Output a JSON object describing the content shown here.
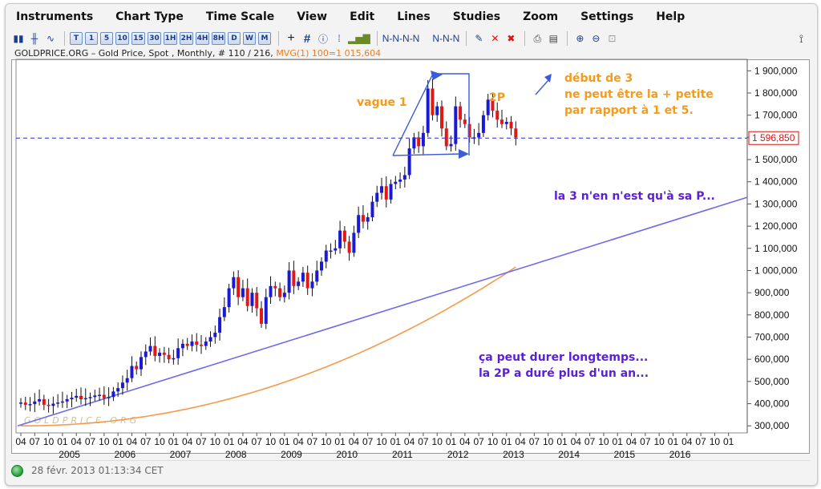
{
  "menu": [
    "Instruments",
    "Chart Type",
    "Time Scale",
    "View",
    "Edit",
    "Lines",
    "Studies",
    "Zoom",
    "Settings",
    "Help"
  ],
  "toolbar": {
    "timeframes": [
      "T",
      "1",
      "5",
      "10",
      "15",
      "30",
      "1H",
      "2H",
      "4H",
      "8H",
      "D",
      "W",
      "M"
    ],
    "icons": [
      "candlestick-icon",
      "ohlc-icon",
      "line-chart-icon",
      "crosshair-icon",
      "grid-icon",
      "info-icon",
      "volume-grid-icon",
      "bar-volume-icon",
      "wave-draw-icon",
      "delete-icon",
      "delete-all-icon",
      "print-icon",
      "print-preview-icon",
      "zoom-in-icon",
      "zoom-out-icon",
      "zoom-reset-icon",
      "pin-icon"
    ]
  },
  "chart_header": {
    "title": "GOLDPRICE.ORG – Gold Price, Spot , Monthly, # 110 / 216,",
    "indicator": "MVG(1) 100=1 015,604"
  },
  "watermark": "GOLDPRICE.ORG",
  "status": {
    "timestamp": "28 févr. 2013 01:13:34 CET"
  },
  "annotations": {
    "vague1": "vague 1",
    "twoP": "2P",
    "debut3": "début de 3\nne peut être la + petite\npar rapport à 1 et 5.",
    "la3": "la 3 n'en n'est qu'à sa P...",
    "durer": "ça peut durer longtemps...\nla 2P a duré plus d'un an..."
  },
  "colors": {
    "up_candle": "#1a1ad6",
    "down_candle": "#e01818",
    "trendline": "#6b6bef",
    "moving_average": "#f59a4a",
    "price_line": "#2626d9",
    "annotation_orange": "#f59a1a",
    "annotation_purple": "#5b1fd6",
    "status_green": "#1f9a3a"
  },
  "chart_data": {
    "type": "candlestick",
    "title": "GOLDPRICE.ORG – Gold Price, Spot , Monthly, # 110 / 216,",
    "current_price_label": "1 596,850",
    "current_price": 1596.85,
    "ylim": [
      290000,
      1930000
    ],
    "y_ticks": [
      "300,000",
      "400,000",
      "500,000",
      "600,000",
      "700,000",
      "800,000",
      "900,000",
      "1 000,000",
      "1 100,000",
      "1 200,000",
      "1 300,000",
      "1 400,000",
      "1 500,000",
      "1 600,000",
      "1 700,000",
      "1 800,000",
      "1 900,000"
    ],
    "y_tick_values": [
      300000,
      400000,
      500000,
      600000,
      700000,
      800000,
      900000,
      1000000,
      1100000,
      1200000,
      1300000,
      1400000,
      1500000,
      1600000,
      1700000,
      1800000,
      1900000
    ],
    "x_month_labels": [
      "04",
      "07",
      "10",
      "01",
      "04",
      "07",
      "10",
      "01",
      "04",
      "07",
      "10",
      "01",
      "04",
      "07",
      "10",
      "01",
      "04",
      "07",
      "10",
      "01",
      "04",
      "07",
      "10",
      "01",
      "04",
      "07",
      "10",
      "01",
      "04",
      "07",
      "10",
      "01",
      "04",
      "07",
      "10",
      "01",
      "04",
      "07",
      "10",
      "01",
      "04",
      "07",
      "10",
      "01",
      "04",
      "07",
      "10",
      "01",
      "04",
      "07",
      "10",
      "01"
    ],
    "x_year_labels": [
      "2005",
      "2006",
      "2007",
      "2008",
      "2009",
      "2010",
      "2011",
      "2012",
      "2013",
      "2014",
      "2015",
      "2016"
    ],
    "x_start_month": "2004-04",
    "months_total": 156,
    "candles_close": [
      405,
      395,
      398,
      410,
      420,
      395,
      390,
      400,
      405,
      410,
      420,
      427,
      435,
      420,
      425,
      430,
      437,
      440,
      425,
      430,
      455,
      470,
      495,
      515,
      570,
      555,
      610,
      635,
      660,
      615,
      630,
      620,
      600,
      605,
      650,
      670,
      660,
      680,
      665,
      660,
      680,
      700,
      720,
      790,
      835,
      920,
      970,
      880,
      920,
      840,
      900,
      830,
      760,
      880,
      930,
      920,
      880,
      900,
      1000,
      930,
      950,
      990,
      920,
      950,
      1000,
      1040,
      1090,
      1090,
      1100,
      1180,
      1130,
      1080,
      1170,
      1250,
      1220,
      1240,
      1310,
      1350,
      1380,
      1320,
      1390,
      1400,
      1410,
      1430,
      1550,
      1600,
      1560,
      1620,
      1820,
      1700,
      1740,
      1640,
      1560,
      1570,
      1740,
      1680,
      1660,
      1600,
      1600,
      1620,
      1700,
      1770,
      1720,
      1680,
      1660,
      1670,
      1640,
      1600
    ],
    "moving_average_end": 1015.604,
    "trendline_start": [
      0,
      300000
    ],
    "trendline_end": [
      155,
      1330000
    ],
    "series": [
      {
        "name": "MVG(1) 100",
        "last": 1015604
      }
    ]
  }
}
